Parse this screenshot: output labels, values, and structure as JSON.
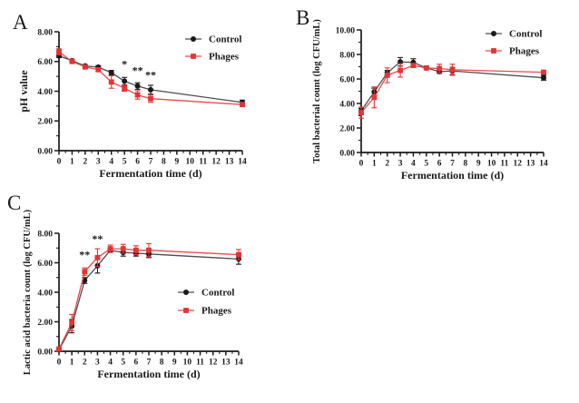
{
  "figure": {
    "background": "#ffffff",
    "accent_black": "#1a1a1a",
    "accent_red": "#e63335",
    "panels": [
      {
        "label": "A"
      },
      {
        "label": "B"
      },
      {
        "label": "C"
      }
    ]
  },
  "chart_data": [
    {
      "id": "a",
      "type": "line",
      "title": "",
      "xlabel": "Fermentation time (d)",
      "ylabel": "pH value",
      "x": [
        0,
        1,
        2,
        3,
        4,
        5,
        6,
        7,
        14
      ],
      "xlim": [
        0,
        14
      ],
      "ylim": [
        0,
        8
      ],
      "ytick_step": 2,
      "yminor_step": 1,
      "xtick_step": 1,
      "xminor_step": 0.5,
      "ytick_format_decimals": 2,
      "grid": false,
      "legend_position": "top-right",
      "series": [
        {
          "name": "Control",
          "marker": "circle",
          "color": "#1a1a1a",
          "line_color": "#4d4d4d",
          "values": [
            6.38,
            6.05,
            5.7,
            5.62,
            5.25,
            4.68,
            4.35,
            4.1,
            3.25
          ],
          "errors": [
            0.12,
            0.08,
            0.08,
            0.1,
            0.15,
            0.25,
            0.22,
            0.3,
            0.15
          ]
        },
        {
          "name": "Phages",
          "marker": "square",
          "color": "#e63335",
          "line_color": "#ea4a4a",
          "values": [
            6.65,
            6.0,
            5.63,
            5.45,
            4.62,
            4.2,
            3.75,
            3.5,
            3.1
          ],
          "errors": [
            0.2,
            0.08,
            0.1,
            0.12,
            0.42,
            0.2,
            0.28,
            0.25,
            0.12
          ]
        }
      ],
      "annotations": [
        {
          "text": "*",
          "x": 5,
          "y": 5.6
        },
        {
          "text": "**",
          "x": 6,
          "y": 5.15
        },
        {
          "text": "**",
          "x": 7,
          "y": 4.85
        }
      ]
    },
    {
      "id": "b",
      "type": "line",
      "title": "",
      "xlabel": "Fermentation time (d)",
      "ylabel": "Total bacterial count (log CFU/mL)",
      "x": [
        0,
        1,
        2,
        3,
        4,
        5,
        6,
        7,
        14
      ],
      "xlim": [
        0,
        14
      ],
      "ylim": [
        0,
        10
      ],
      "ytick_step": 2,
      "yminor_step": 1,
      "xtick_step": 1,
      "xminor_step": 0.5,
      "ytick_format_decimals": 2,
      "grid": false,
      "legend_position": "top-right",
      "series": [
        {
          "name": "Control",
          "marker": "circle",
          "color": "#1a1a1a",
          "line_color": "#4d4d4d",
          "values": [
            3.4,
            4.95,
            6.5,
            7.4,
            7.35,
            6.9,
            6.6,
            6.65,
            6.1
          ],
          "errors": [
            0.2,
            0.3,
            0.2,
            0.35,
            0.3,
            0.08,
            0.15,
            0.3,
            0.2
          ]
        },
        {
          "name": "Phages",
          "marker": "square",
          "color": "#e63335",
          "line_color": "#ea4a4a",
          "values": [
            3.25,
            4.5,
            6.3,
            6.7,
            7.1,
            6.9,
            6.85,
            6.75,
            6.55
          ],
          "errors": [
            0.45,
            0.85,
            0.6,
            0.55,
            0.15,
            0.08,
            0.35,
            0.45,
            0.15
          ]
        }
      ],
      "annotations": []
    },
    {
      "id": "c",
      "type": "line",
      "title": "",
      "xlabel": "Fermentation time (d)",
      "ylabel": "Lactic acid bacteria count (log CFU/mL)",
      "x": [
        0,
        1,
        2,
        3,
        4,
        5,
        6,
        7,
        14
      ],
      "xlim": [
        0,
        14
      ],
      "ylim": [
        0,
        8
      ],
      "ytick_step": 2,
      "yminor_step": 1,
      "xtick_step": 1,
      "xminor_step": 0.5,
      "ytick_format_decimals": 2,
      "grid": false,
      "legend_position": "middle-right",
      "series": [
        {
          "name": "Control",
          "marker": "circle",
          "color": "#1a1a1a",
          "line_color": "#4d4d4d",
          "values": [
            0.1,
            1.7,
            4.8,
            5.8,
            6.85,
            6.7,
            6.65,
            6.6,
            6.25
          ],
          "errors": [
            0.05,
            0.45,
            0.2,
            0.5,
            0.12,
            0.25,
            0.2,
            0.25,
            0.35
          ]
        },
        {
          "name": "Phages",
          "marker": "square",
          "color": "#e63335",
          "line_color": "#ea4a4a",
          "values": [
            0.15,
            1.95,
            5.4,
            6.35,
            6.95,
            6.95,
            6.85,
            6.85,
            6.55
          ],
          "errors": [
            0.05,
            0.55,
            0.25,
            0.6,
            0.25,
            0.3,
            0.3,
            0.45,
            0.35
          ]
        }
      ],
      "annotations": [
        {
          "text": "**",
          "x": 2,
          "y": 6.3
        },
        {
          "text": "**",
          "x": 3,
          "y": 7.4
        }
      ]
    }
  ]
}
